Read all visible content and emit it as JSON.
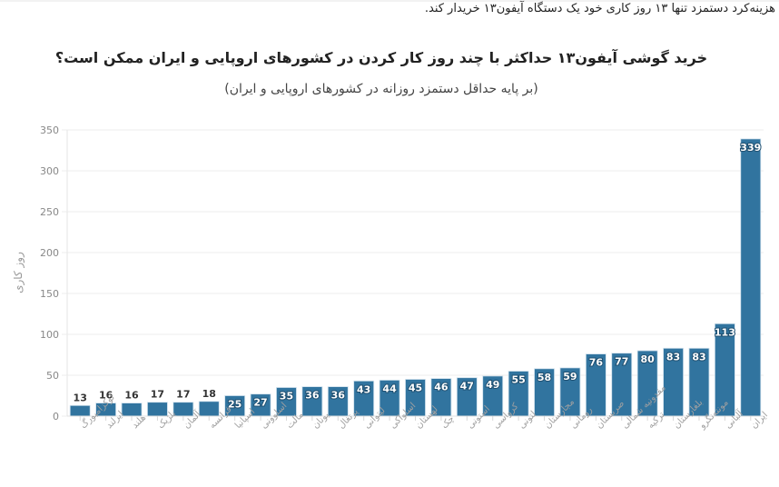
{
  "page": {
    "intro_text": "هزینه‌کرد دستمزد تنها ۱۳ روز کاری خود یک دستگاه آیفون۱۳ خریدار کند."
  },
  "chart_data": {
    "type": "bar",
    "title": "خرید گوشی آیفون۱۳ حداکثر با چند روز کار کردن در کشورهای اروپایی و ایران ممکن است؟",
    "subtitle": "(بر پایه حداقل دستمزد روزانه در کشورهای اروپایی و ایران)",
    "xlabel": "",
    "ylabel": "روز کاری",
    "ylim": [
      0,
      350
    ],
    "yticks": [
      0,
      50,
      100,
      150,
      200,
      250,
      300,
      350
    ],
    "grid": true,
    "legend": null,
    "bar_color": "#31749f",
    "categories": [
      "لوکزامبورگ",
      "ایرلند",
      "هلند",
      "بلژیک",
      "آلمان",
      "فرانسه",
      "اسپانیا",
      "اسلوونی",
      "مالت",
      "یونان",
      "پرتغال",
      "لیتوانی",
      "اسلواکی",
      "لهستان",
      "چک",
      "استونی",
      "کرواسی",
      "لتونی",
      "مجارستان",
      "رومانی",
      "صربستان",
      "مقدونیه شمالی",
      "ترکیه",
      "بلغارستان",
      "مونته‌نگرو",
      "آلبانی",
      "ایران"
    ],
    "values": [
      13,
      16,
      16,
      17,
      17,
      18,
      25,
      27,
      35,
      36,
      36,
      43,
      44,
      45,
      46,
      47,
      49,
      55,
      58,
      59,
      76,
      77,
      80,
      83,
      83,
      113,
      339
    ],
    "data_labels": true
  }
}
